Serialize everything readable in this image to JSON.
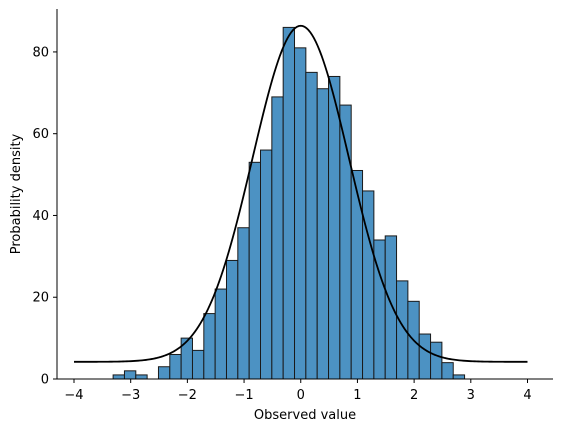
{
  "chart_data": {
    "type": "bar",
    "subtype": "histogram-with-curve",
    "title": "",
    "xlabel": "Observed value",
    "ylabel": "Probability density",
    "xlim": [
      -4.3,
      4.45
    ],
    "ylim": [
      0,
      90.5
    ],
    "xticks": [
      -4,
      -3,
      -2,
      -1,
      0,
      1,
      2,
      3,
      4
    ],
    "yticks": [
      0,
      20,
      40,
      60,
      80
    ],
    "xtick_labels": [
      "−4",
      "−3",
      "−2",
      "−1",
      "0",
      "1",
      "2",
      "3",
      "4"
    ],
    "ytick_labels": [
      "0",
      "20",
      "40",
      "60",
      "80"
    ],
    "grid": false,
    "legend": "none",
    "spines": [
      "left",
      "bottom"
    ],
    "bar_color": "#4c92c3",
    "edge_color": "#1a1a1a",
    "curve_color": "#000000",
    "bin_start": -3.31,
    "bin_width": 0.2,
    "bin_counts": [
      1,
      2,
      1,
      0,
      3,
      6,
      10,
      7,
      16,
      22,
      29,
      37,
      53,
      56,
      69,
      86,
      81,
      75,
      71,
      74,
      67,
      51,
      46,
      34,
      35,
      24,
      19,
      11,
      9,
      4,
      1
    ],
    "curve": {
      "name": "",
      "baseline": 4.2,
      "peak": 82.2,
      "mean": 0.0,
      "sd": 0.85,
      "x_range": [
        -4,
        4
      ]
    }
  }
}
